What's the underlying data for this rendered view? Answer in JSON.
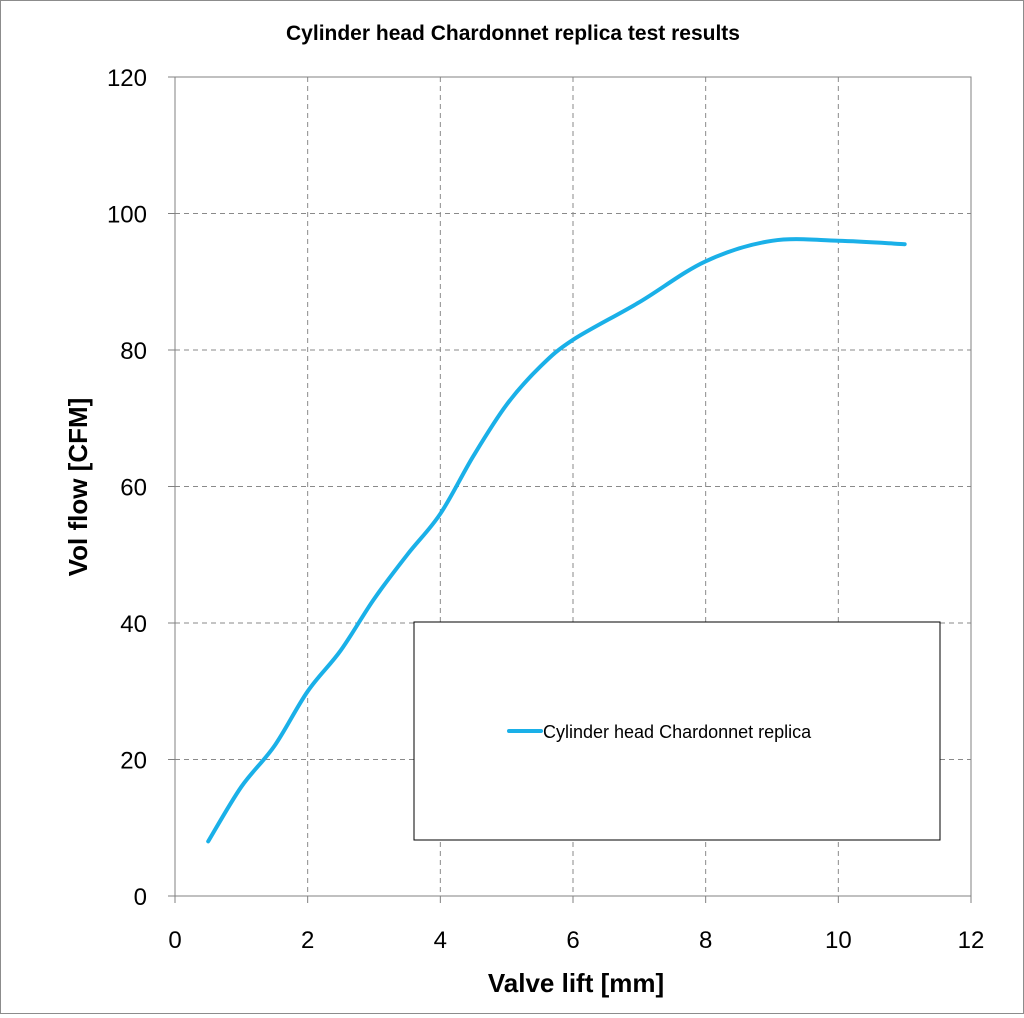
{
  "chart_data": {
    "type": "line",
    "title": "Cylinder head Chardonnet replica test results",
    "xlabel": "Valve lift [mm]",
    "ylabel": "Vol flow [CFM]",
    "xlim": [
      0,
      12
    ],
    "ylim": [
      0,
      120
    ],
    "x_ticks": [
      0,
      2,
      4,
      6,
      8,
      10,
      12
    ],
    "y_ticks": [
      0,
      20,
      40,
      60,
      80,
      100,
      120
    ],
    "grid": "dashed",
    "legend_position": "bottom-right",
    "series": [
      {
        "name": "Cylinder head Chardonnet replica",
        "color": "#1ab0e8",
        "x": [
          0.5,
          1.0,
          1.5,
          2.0,
          2.5,
          3.0,
          3.5,
          4.0,
          4.5,
          5.0,
          5.5,
          6.0,
          7.0,
          8.0,
          9.0,
          10.0,
          11.0
        ],
        "y": [
          8,
          16,
          22,
          30,
          36,
          43.5,
          50,
          56,
          64.5,
          72,
          77.5,
          81.5,
          87,
          93,
          96,
          96,
          95.5
        ]
      }
    ]
  }
}
